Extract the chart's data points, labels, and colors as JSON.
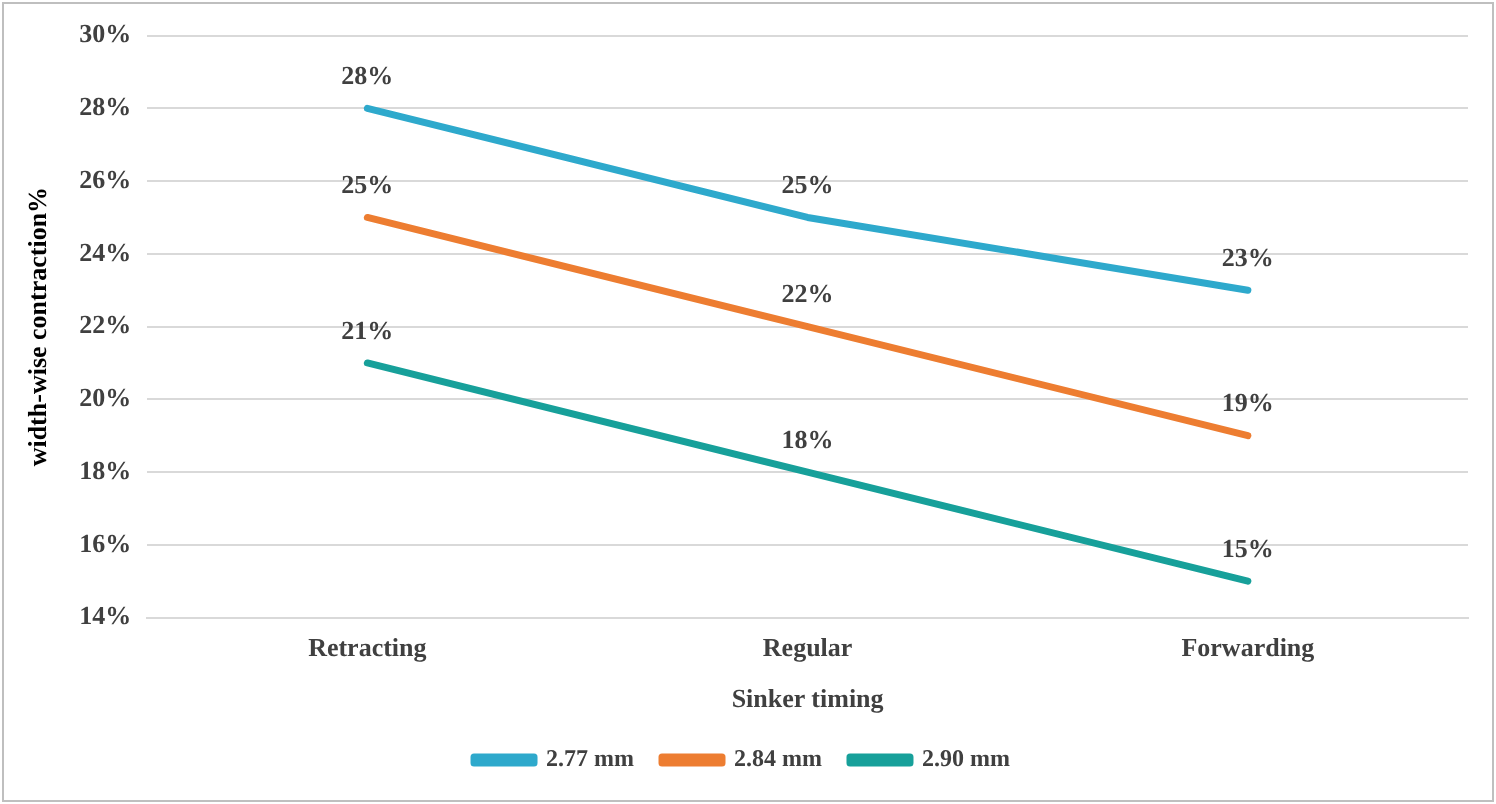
{
  "chart_data": {
    "type": "line",
    "xlabel": "Sinker timing",
    "ylabel": "width-wise contraction%",
    "categories": [
      "Retracting",
      "Regular",
      "Forwarding"
    ],
    "series": [
      {
        "name": "2.77 mm",
        "color": "#2ea9cc",
        "values": [
          28,
          25,
          23
        ],
        "value_labels": [
          "28%",
          "25%",
          "23%"
        ]
      },
      {
        "name": "2.84 mm",
        "color": "#ed7d31",
        "values": [
          25,
          22,
          19
        ],
        "value_labels": [
          "25%",
          "22%",
          "19%"
        ]
      },
      {
        "name": "2.90 mm",
        "color": "#17a09a",
        "values": [
          21,
          18,
          15
        ],
        "value_labels": [
          "21%",
          "18%",
          "15%"
        ]
      }
    ],
    "ylim": [
      14,
      30
    ],
    "yticks": [
      {
        "value": 14,
        "label": "14%"
      },
      {
        "value": 16,
        "label": "16%"
      },
      {
        "value": 18,
        "label": "18%"
      },
      {
        "value": 20,
        "label": "20%"
      },
      {
        "value": 22,
        "label": "22%"
      },
      {
        "value": 24,
        "label": "24%"
      },
      {
        "value": 26,
        "label": "26%"
      },
      {
        "value": 28,
        "label": "28%"
      },
      {
        "value": 30,
        "label": "30%"
      }
    ],
    "grid": "y",
    "legend": "bottom",
    "marker": "none",
    "line_style": "solid"
  }
}
